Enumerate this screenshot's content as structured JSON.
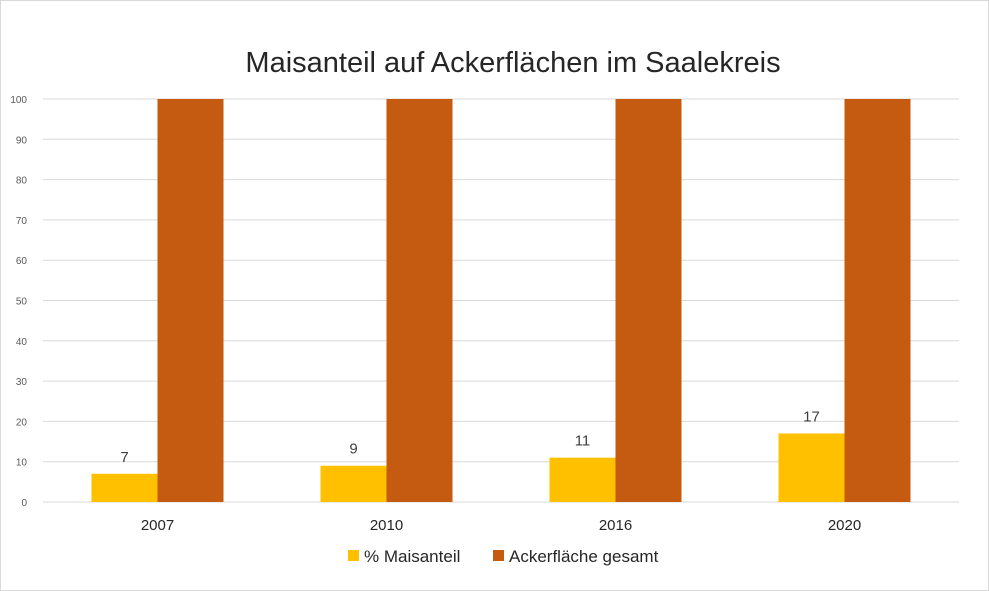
{
  "chart_data": {
    "type": "bar",
    "title": "Maisanteil auf Ackerflächen im Saalekreis",
    "xlabel": "",
    "ylabel": "",
    "categories": [
      "2007",
      "2010",
      "2016",
      "2020"
    ],
    "series": [
      {
        "name": "% Maisanteil",
        "values": [
          7,
          9,
          11,
          17
        ],
        "color": "#FFC000",
        "show_labels": true
      },
      {
        "name": "Ackerfläche gesamt",
        "values": [
          100,
          100,
          100,
          100
        ],
        "color": "#C55A11",
        "show_labels": false
      }
    ],
    "ylim": [
      0,
      100
    ],
    "yticks": [
      0,
      10,
      20,
      30,
      40,
      50,
      60,
      70,
      80,
      90,
      100
    ],
    "grid": true,
    "legend": "bottom"
  }
}
